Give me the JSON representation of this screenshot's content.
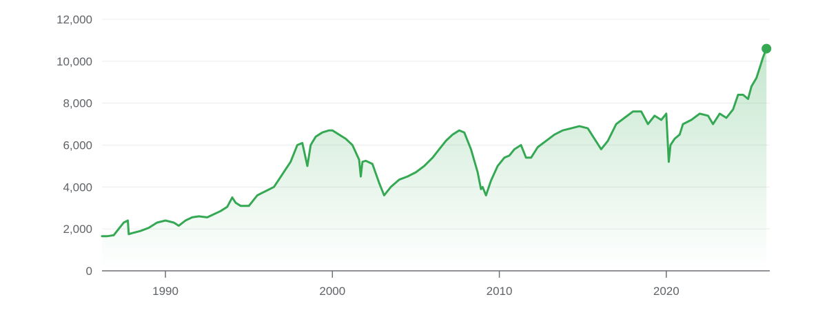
{
  "chart_data": {
    "type": "area",
    "title": "",
    "xlabel": "",
    "ylabel": "",
    "xlim": [
      1986.2,
      2026.2
    ],
    "ylim": [
      0,
      12000
    ],
    "grid": true,
    "legend": "none",
    "y_ticks": [
      0,
      2000,
      4000,
      6000,
      8000,
      10000,
      12000
    ],
    "y_tick_labels": [
      "0",
      "2,000",
      "4,000",
      "6,000",
      "8,000",
      "10,000",
      "12,000"
    ],
    "x_ticks": [
      1990,
      2000,
      2010,
      2020
    ],
    "x_tick_labels": [
      "1990",
      "2000",
      "2010",
      "2020"
    ],
    "colors": {
      "line": "#34a853",
      "fill": "#34a853",
      "grid": "#ececec",
      "axis": "#6b6f73",
      "text": "#5f6368"
    },
    "series": [
      {
        "x": [
          1986.2,
          1986.5,
          1986.9,
          1987.2,
          1987.5,
          1987.75,
          1987.8,
          1988.0,
          1988.5,
          1989.0,
          1989.5,
          1990.0,
          1990.5,
          1990.8,
          1991.2,
          1991.6,
          1992.0,
          1992.5,
          1992.9,
          1993.3,
          1993.7,
          1994.0,
          1994.2,
          1994.5,
          1995.0,
          1995.5,
          1996.0,
          1996.5,
          1997.0,
          1997.5,
          1997.9,
          1998.2,
          1998.5,
          1998.7,
          1999.0,
          1999.4,
          1999.8,
          2000.0,
          2000.4,
          2000.8,
          2001.2,
          2001.6,
          2001.7,
          2001.8,
          2002.0,
          2002.4,
          2002.8,
          2003.1,
          2003.5,
          2004.0,
          2004.5,
          2005.0,
          2005.5,
          2006.0,
          2006.4,
          2006.8,
          2007.2,
          2007.6,
          2007.9,
          2008.3,
          2008.7,
          2008.9,
          2009.0,
          2009.2,
          2009.5,
          2009.9,
          2010.3,
          2010.6,
          2010.9,
          2011.3,
          2011.6,
          2011.9,
          2012.3,
          2012.8,
          2013.3,
          2013.8,
          2014.3,
          2014.8,
          2015.3,
          2015.7,
          2016.1,
          2016.5,
          2017.0,
          2017.5,
          2018.0,
          2018.5,
          2018.9,
          2019.3,
          2019.7,
          2020.0,
          2020.15,
          2020.25,
          2020.5,
          2020.8,
          2021.0,
          2021.5,
          2022.0,
          2022.5,
          2022.8,
          2023.2,
          2023.6,
          2024.0,
          2024.3,
          2024.6,
          2024.9,
          2025.1,
          2025.4,
          2025.6,
          2025.8,
          2026.0
        ],
        "values": [
          1650,
          1650,
          1700,
          2000,
          2300,
          2400,
          1750,
          1800,
          1900,
          2050,
          2300,
          2400,
          2300,
          2150,
          2400,
          2550,
          2600,
          2550,
          2700,
          2850,
          3050,
          3500,
          3250,
          3100,
          3100,
          3600,
          3800,
          4000,
          4600,
          5200,
          6000,
          6100,
          5000,
          6000,
          6400,
          6600,
          6700,
          6700,
          6500,
          6300,
          6000,
          5300,
          4500,
          5200,
          5250,
          5100,
          4200,
          3600,
          4000,
          4350,
          4500,
          4700,
          5000,
          5400,
          5800,
          6200,
          6500,
          6700,
          6600,
          5800,
          4700,
          3900,
          4000,
          3600,
          4300,
          5000,
          5400,
          5500,
          5800,
          6000,
          5400,
          5400,
          5900,
          6200,
          6500,
          6700,
          6800,
          6900,
          6800,
          6300,
          5800,
          6200,
          7000,
          7300,
          7600,
          7600,
          7000,
          7400,
          7200,
          7500,
          5200,
          6000,
          6300,
          6500,
          7000,
          7200,
          7500,
          7400,
          7000,
          7500,
          7300,
          7700,
          8400,
          8400,
          8200,
          8800,
          9200,
          9700,
          10200,
          10600
        ]
      }
    ],
    "end_marker": {
      "x": 2026.0,
      "y": 10600
    }
  }
}
